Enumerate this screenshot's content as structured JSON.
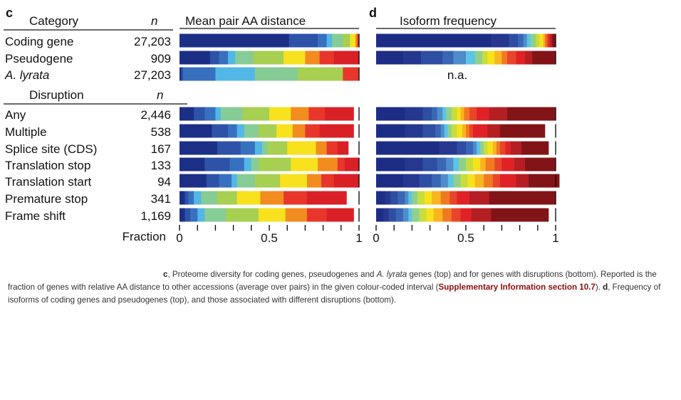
{
  "panel_c": {
    "letter": "c",
    "category_header": "Category",
    "n_header": "n",
    "title": "Mean pair AA distance",
    "disruption_header": "Disruption",
    "disruption_n_header": "n",
    "axis_label": "Fraction",
    "ticks": [
      "0",
      "0.5",
      "1"
    ]
  },
  "panel_d": {
    "letter": "d",
    "title": "Isoform frequency",
    "na_label": "n.a.",
    "ticks": [
      "0",
      "0.5",
      "1"
    ]
  },
  "palette_c": [
    "#1b2f86",
    "#2d52a8",
    "#3870c0",
    "#52b7e6",
    "#86cc96",
    "#a7cf52",
    "#f7e21d",
    "#f28c1f",
    "#e8362a",
    "#d92027"
  ],
  "palette_d": [
    "#1d2d85",
    "#25378f",
    "#2e4ea3",
    "#3a66b6",
    "#4f8ccb",
    "#5cc4e6",
    "#8fd08f",
    "#c6dc3f",
    "#f6e21a",
    "#f8b51e",
    "#f07a1f",
    "#e8452a",
    "#e02226",
    "#b51e22",
    "#821417"
  ],
  "chart_data": [
    {
      "type": "bar",
      "orientation": "horizontal",
      "stacked": true,
      "title": "Mean pair AA distance",
      "xlabel": "Fraction",
      "xlim": [
        0,
        1
      ],
      "categories": [
        "Coding gene",
        "Pseudogene",
        "A. lyrata",
        "Any",
        "Multiple",
        "Splice site (CDS)",
        "Translation stop",
        "Translation start",
        "Premature stop",
        "Frame shift"
      ],
      "n": [
        "27,203",
        "909",
        "27,203",
        "2,446",
        "538",
        "167",
        "133",
        "94",
        "341",
        "1,169"
      ],
      "groups": [
        {
          "label": "Category",
          "rows": [
            0,
            1,
            2
          ]
        },
        {
          "label": "Disruption",
          "rows": [
            3,
            4,
            5,
            6,
            7,
            8,
            9
          ]
        }
      ],
      "stacks": [
        [
          0.61,
          0.16,
          0.05,
          0.03,
          0.06,
          0.04,
          0.03,
          0.01,
          0.01,
          0.0
        ],
        [
          0.17,
          0.05,
          0.05,
          0.04,
          0.1,
          0.17,
          0.12,
          0.08,
          0.08,
          0.14
        ],
        [
          0.01,
          0.01,
          0.18,
          0.22,
          0.24,
          0.25,
          0.0,
          0.0,
          0.09,
          0.0
        ],
        [
          0.08,
          0.06,
          0.06,
          0.03,
          0.12,
          0.15,
          0.12,
          0.1,
          0.09,
          0.16
        ],
        [
          0.18,
          0.09,
          0.05,
          0.04,
          0.08,
          0.1,
          0.09,
          0.07,
          0.08,
          0.19
        ],
        [
          0.21,
          0.13,
          0.08,
          0.04,
          0.03,
          0.11,
          0.16,
          0.06,
          0.06,
          0.06
        ],
        [
          0.14,
          0.14,
          0.08,
          0.04,
          0.04,
          0.18,
          0.15,
          0.11,
          0.04,
          0.08
        ],
        [
          0.15,
          0.07,
          0.07,
          0.03,
          0.1,
          0.14,
          0.15,
          0.08,
          0.07,
          0.14
        ],
        [
          0.03,
          0.02,
          0.03,
          0.04,
          0.09,
          0.11,
          0.13,
          0.13,
          0.13,
          0.22
        ],
        [
          0.03,
          0.03,
          0.04,
          0.04,
          0.12,
          0.18,
          0.15,
          0.12,
          0.11,
          0.15
        ]
      ]
    },
    {
      "type": "bar",
      "orientation": "horizontal",
      "stacked": true,
      "title": "Isoform frequency",
      "xlim": [
        0,
        1
      ],
      "categories": [
        "Coding gene",
        "Pseudogene",
        "A. lyrata",
        "Any",
        "Multiple",
        "Splice site (CDS)",
        "Translation stop",
        "Translation start",
        "Premature stop",
        "Frame shift"
      ],
      "stacks": [
        [
          0.64,
          0.1,
          0.05,
          0.03,
          0.02,
          0.02,
          0.03,
          0.02,
          0.02,
          0.01,
          0.01,
          0.01,
          0.01,
          0.01,
          0.02
        ],
        [
          0.15,
          0.1,
          0.12,
          0.06,
          0.07,
          0.05,
          0.04,
          0.03,
          0.04,
          0.04,
          0.03,
          0.05,
          0.05,
          0.04,
          0.13
        ],
        null,
        [
          0.16,
          0.1,
          0.05,
          0.03,
          0.03,
          0.02,
          0.03,
          0.03,
          0.02,
          0.02,
          0.03,
          0.04,
          0.07,
          0.1,
          0.27
        ],
        [
          0.16,
          0.1,
          0.07,
          0.03,
          0.02,
          0.02,
          0.02,
          0.03,
          0.03,
          0.02,
          0.02,
          0.02,
          0.08,
          0.07,
          0.25
        ],
        [
          0.35,
          0.1,
          0.05,
          0.04,
          0.02,
          0.02,
          0.02,
          0.02,
          0.03,
          0.02,
          0.02,
          0.03,
          0.03,
          0.06,
          0.15
        ],
        [
          0.16,
          0.1,
          0.08,
          0.05,
          0.04,
          0.03,
          0.04,
          0.04,
          0.04,
          0.03,
          0.05,
          0.04,
          0.07,
          0.06,
          0.17
        ],
        [
          0.15,
          0.09,
          0.07,
          0.05,
          0.04,
          0.03,
          0.04,
          0.04,
          0.04,
          0.05,
          0.05,
          0.04,
          0.09,
          0.07,
          0.17
        ],
        [
          0.05,
          0.03,
          0.04,
          0.04,
          0.02,
          0.02,
          0.03,
          0.04,
          0.04,
          0.05,
          0.05,
          0.04,
          0.07,
          0.11,
          0.37
        ],
        [
          0.04,
          0.03,
          0.04,
          0.04,
          0.03,
          0.02,
          0.04,
          0.04,
          0.04,
          0.05,
          0.05,
          0.05,
          0.06,
          0.11,
          0.32
        ]
      ]
    }
  ],
  "caption": {
    "c_label": "c",
    "c_text_1": ", Proteome diversity for coding genes, pseudogenes and ",
    "c_italic": "A. lyrata",
    "c_text_2": " genes (top) and for genes with disruptions (bottom). Reported is the fraction of genes with relative AA distance to other accessions (average over pairs) in the given colour-coded interval (",
    "ref": "Supplementary Information section 10.7",
    "c_text_3": "). ",
    "d_label": "d",
    "d_text": ", Frequency of isoforms of coding genes and pseudogenes (top), and those associated with different disruptions (bottom)."
  }
}
